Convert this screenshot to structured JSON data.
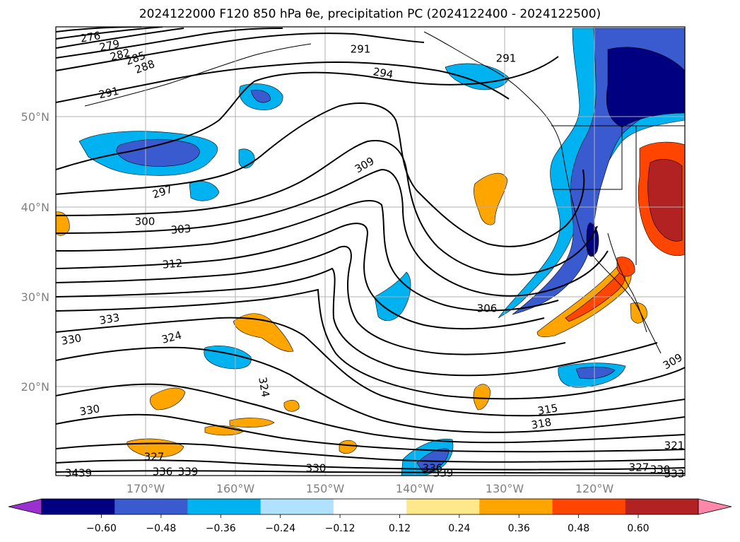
{
  "title": "2024122000 F120 850 hPa θe, precipitation PC (2024122400 - 2024122500)",
  "lat_labels": [
    "50°N",
    "40°N",
    "30°N",
    "20°N"
  ],
  "lon_labels": [
    "170°W",
    "160°W",
    "150°W",
    "140°W",
    "130°W",
    "120°W"
  ],
  "colorbar": {
    "tick_labels": [
      "−0.60",
      "−0.48",
      "−0.36",
      "−0.24",
      "−0.12",
      "0.12",
      "0.24",
      "0.36",
      "0.48",
      "0.60"
    ],
    "colors": [
      "#9b30d0",
      "#000080",
      "#3a5bd0",
      "#00b2f0",
      "#b0e2ff",
      "#ffffff",
      "#ffe88a",
      "#ffa500",
      "#ff4500",
      "#b22222",
      "#ff88aa"
    ]
  },
  "contour_labels": [
    "276",
    "279",
    "282",
    "285",
    "288",
    "291",
    "291",
    "291",
    "294",
    "297",
    "300",
    "303",
    "309",
    "312",
    "306",
    "333",
    "330",
    "324",
    "324",
    "330",
    "327",
    "336",
    "339",
    "3439",
    "336",
    "339",
    "330",
    "315",
    "318",
    "321",
    "327",
    "330",
    "333",
    "309"
  ],
  "chart_data": {
    "type": "map",
    "variable": "850 hPa θe and precipitation PC",
    "init": "2024122000",
    "forecast_hour": "F120",
    "valid_period": "2024122400 - 2024122500",
    "lat_range": [
      "10°N",
      "59°N"
    ],
    "lon_range": [
      "180°W",
      "110°W"
    ],
    "grid": true,
    "colorbar_levels": [
      -0.6,
      -0.48,
      -0.36,
      -0.24,
      -0.12,
      0.12,
      0.24,
      0.36,
      0.48,
      0.6
    ],
    "colorbar_extend": "both"
  }
}
